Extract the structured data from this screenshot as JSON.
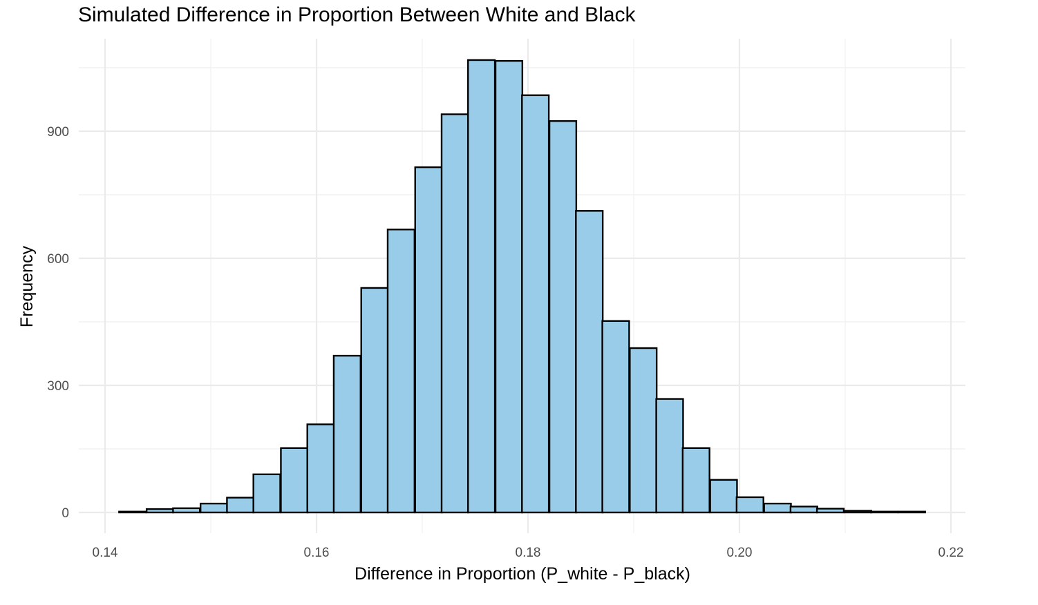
{
  "chart_data": {
    "type": "bar",
    "title": "Simulated Difference in Proportion Between White and Black",
    "xlabel": "Difference in Proportion (P_white - P_black)",
    "ylabel": "Frequency",
    "xlim": [
      0.14,
      0.22
    ],
    "ylim": [
      0,
      1080
    ],
    "x_ticks": [
      0.14,
      0.16,
      0.18,
      0.2,
      0.22
    ],
    "x_tick_labels": [
      "0.14",
      "0.16",
      "0.18",
      "0.20",
      "0.22"
    ],
    "y_ticks": [
      0,
      300,
      600,
      900
    ],
    "y_tick_labels": [
      "0",
      "300",
      "600",
      "900"
    ],
    "bin_width": 0.002538,
    "bin_centers": [
      0.1426,
      0.1452,
      0.1477,
      0.1503,
      0.1528,
      0.1553,
      0.1579,
      0.1604,
      0.1629,
      0.1655,
      0.168,
      0.1706,
      0.1731,
      0.1756,
      0.1782,
      0.1807,
      0.1833,
      0.1858,
      0.1883,
      0.1909,
      0.1934,
      0.1959,
      0.1985,
      0.201,
      0.2036,
      0.2061,
      0.2086,
      0.2112,
      0.2137,
      0.2163
    ],
    "values": [
      2,
      8,
      10,
      21,
      35,
      90,
      152,
      208,
      370,
      530,
      668,
      815,
      940,
      1068,
      1066,
      985,
      924,
      712,
      452,
      388,
      268,
      152,
      77,
      36,
      21,
      14,
      9,
      4,
      2,
      2
    ],
    "fill_color": "#99cce8",
    "edge_color": "#000000",
    "grid": true,
    "legend": "none"
  }
}
